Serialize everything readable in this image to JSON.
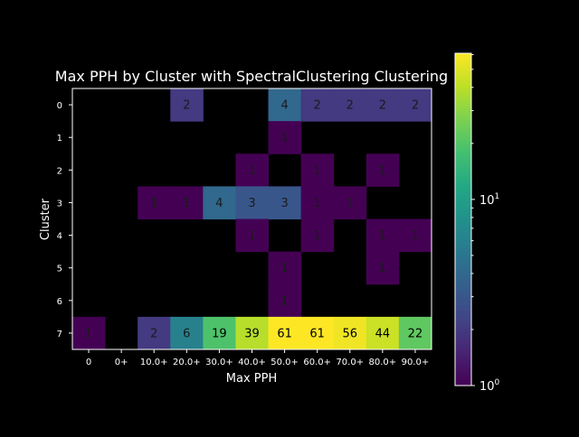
{
  "chart_data": {
    "type": "heatmap",
    "title": "Max PPH by Cluster with SpectralClustering Clustering",
    "xlabel": "Max PPH",
    "ylabel": "Cluster",
    "x_categories": [
      "0",
      "0+",
      "10.0+",
      "20.0+",
      "30.0+",
      "40.0+",
      "50.0+",
      "60.0+",
      "70.0+",
      "80.0+",
      "90.0+"
    ],
    "y_categories": [
      "0",
      "1",
      "2",
      "3",
      "4",
      "5",
      "6",
      "7"
    ],
    "values": [
      [
        null,
        null,
        null,
        2,
        null,
        null,
        4,
        2,
        2,
        2,
        2
      ],
      [
        null,
        null,
        null,
        null,
        null,
        null,
        1,
        null,
        null,
        null,
        null
      ],
      [
        null,
        null,
        null,
        null,
        null,
        1,
        null,
        1,
        null,
        1,
        null
      ],
      [
        null,
        null,
        1,
        1,
        4,
        3,
        3,
        1,
        1,
        null,
        null
      ],
      [
        null,
        null,
        null,
        null,
        null,
        1,
        null,
        1,
        null,
        1,
        1
      ],
      [
        null,
        null,
        null,
        null,
        null,
        null,
        1,
        null,
        null,
        1,
        null
      ],
      [
        null,
        null,
        null,
        null,
        null,
        null,
        1,
        null,
        null,
        null,
        null
      ],
      [
        1,
        null,
        2,
        6,
        19,
        39,
        61,
        61,
        56,
        44,
        22
      ]
    ],
    "color_scale": "log",
    "colormap": "viridis",
    "vmin": 1,
    "vmax": 61,
    "colorbar_ticks": [
      {
        "base": "10",
        "exp": "0",
        "value": 1
      },
      {
        "base": "10",
        "exp": "1",
        "value": 10
      }
    ],
    "background_color": "#000000",
    "text_color": "#ffffff"
  }
}
